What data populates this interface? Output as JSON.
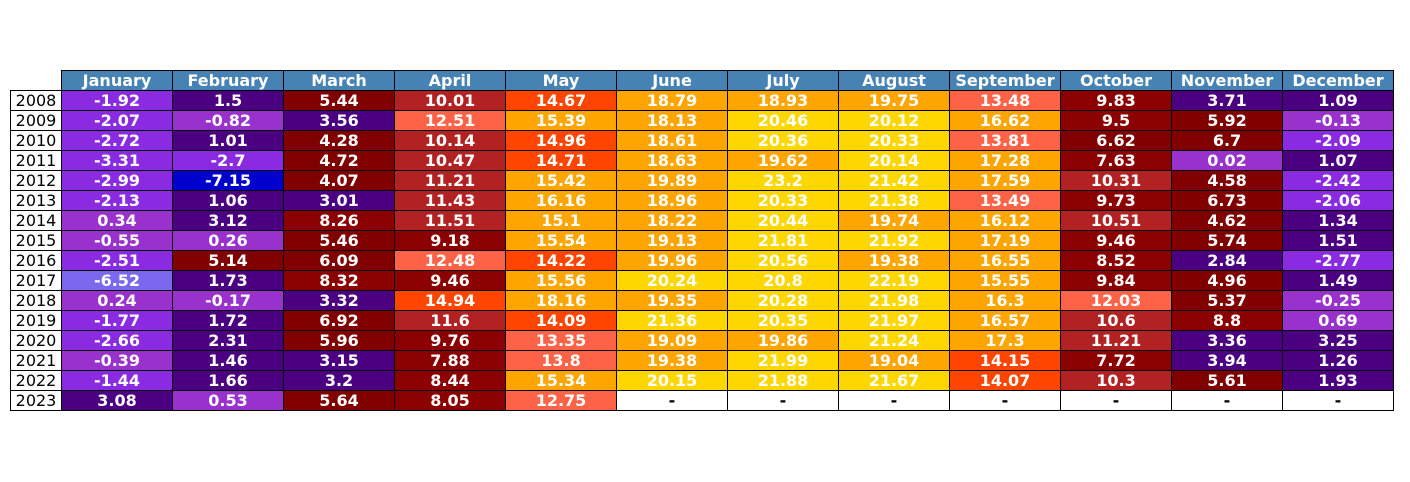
{
  "chart_data": {
    "type": "table",
    "columns": [
      "January",
      "February",
      "March",
      "April",
      "May",
      "June",
      "July",
      "August",
      "September",
      "October",
      "November",
      "December"
    ],
    "rows": [
      {
        "label": "2008",
        "values": [
          "-1.92",
          "1.5",
          "5.44",
          "10.01",
          "14.67",
          "18.79",
          "18.93",
          "19.75",
          "13.48",
          "9.83",
          "3.71",
          "1.09"
        ]
      },
      {
        "label": "2009",
        "values": [
          "-2.07",
          "-0.82",
          "3.56",
          "12.51",
          "15.39",
          "18.13",
          "20.46",
          "20.12",
          "16.62",
          "9.5",
          "5.92",
          "-0.13"
        ]
      },
      {
        "label": "2010",
        "values": [
          "-2.72",
          "1.01",
          "4.28",
          "10.14",
          "14.96",
          "18.61",
          "20.36",
          "20.33",
          "13.81",
          "6.62",
          "6.7",
          "-2.09"
        ]
      },
      {
        "label": "2011",
        "values": [
          "-3.31",
          "-2.7",
          "4.72",
          "10.47",
          "14.71",
          "18.63",
          "19.62",
          "20.14",
          "17.28",
          "7.63",
          "0.02",
          "1.07"
        ]
      },
      {
        "label": "2012",
        "values": [
          "-2.99",
          "-7.15",
          "4.07",
          "11.21",
          "15.42",
          "19.89",
          "23.2",
          "21.42",
          "17.59",
          "10.31",
          "4.58",
          "-2.42"
        ]
      },
      {
        "label": "2013",
        "values": [
          "-2.13",
          "1.06",
          "3.01",
          "11.43",
          "16.16",
          "18.96",
          "20.33",
          "21.38",
          "13.49",
          "9.73",
          "6.73",
          "-2.06"
        ]
      },
      {
        "label": "2014",
        "values": [
          "0.34",
          "3.12",
          "8.26",
          "11.51",
          "15.1",
          "18.22",
          "20.44",
          "19.74",
          "16.12",
          "10.51",
          "4.62",
          "1.34"
        ]
      },
      {
        "label": "2015",
        "values": [
          "-0.55",
          "0.26",
          "5.46",
          "9.18",
          "15.54",
          "19.13",
          "21.81",
          "21.92",
          "17.19",
          "9.46",
          "5.74",
          "1.51"
        ]
      },
      {
        "label": "2016",
        "values": [
          "-2.51",
          "5.14",
          "6.09",
          "12.48",
          "14.22",
          "19.96",
          "20.56",
          "19.38",
          "16.55",
          "8.52",
          "2.84",
          "-2.77"
        ]
      },
      {
        "label": "2017",
        "values": [
          "-6.52",
          "1.73",
          "8.32",
          "9.46",
          "15.56",
          "20.24",
          "20.8",
          "22.19",
          "15.55",
          "9.84",
          "4.96",
          "1.49"
        ]
      },
      {
        "label": "2018",
        "values": [
          "0.24",
          "-0.17",
          "3.32",
          "14.94",
          "18.16",
          "19.35",
          "20.28",
          "21.98",
          "16.3",
          "12.03",
          "5.37",
          "-0.25"
        ]
      },
      {
        "label": "2019",
        "values": [
          "-1.77",
          "1.72",
          "6.92",
          "11.6",
          "14.09",
          "21.36",
          "20.35",
          "21.97",
          "16.57",
          "10.6",
          "8.8",
          "0.69"
        ]
      },
      {
        "label": "2020",
        "values": [
          "-2.66",
          "2.31",
          "5.96",
          "9.76",
          "13.35",
          "19.09",
          "19.86",
          "21.24",
          "17.3",
          "11.21",
          "3.36",
          "3.25"
        ]
      },
      {
        "label": "2021",
        "values": [
          "-0.39",
          "1.46",
          "3.15",
          "7.88",
          "13.8",
          "19.38",
          "21.99",
          "19.04",
          "14.15",
          "7.72",
          "3.94",
          "1.26"
        ]
      },
      {
        "label": "2022",
        "values": [
          "-1.44",
          "1.66",
          "3.2",
          "8.44",
          "15.34",
          "20.15",
          "21.88",
          "21.67",
          "14.07",
          "10.3",
          "5.61",
          "1.93"
        ]
      },
      {
        "label": "2023",
        "values": [
          "3.08",
          "0.53",
          "5.64",
          "8.05",
          "12.75",
          "-",
          "-",
          "-",
          "-",
          "-",
          "-",
          "-"
        ]
      }
    ],
    "colors": {
      "header": "#4682b4",
      "empty": "#ffffff",
      "scale": [
        {
          "max": -7,
          "color": "#0000cd"
        },
        {
          "max": -4,
          "color": "#7b68ee"
        },
        {
          "max": -1,
          "color": "#8a2be2"
        },
        {
          "max": 1,
          "color": "#9932cc"
        },
        {
          "max": 4,
          "color": "#4b0082"
        },
        {
          "max": 7,
          "color": "#800000"
        },
        {
          "max": 10,
          "color": "#8b0000"
        },
        {
          "max": 12,
          "color": "#b22222"
        },
        {
          "max": 14,
          "color": "#ff6347"
        },
        {
          "max": 15,
          "color": "#ff4500"
        },
        {
          "max": 20,
          "color": "#ffa500"
        },
        {
          "max": 99,
          "color": "#ffd700"
        }
      ]
    }
  }
}
